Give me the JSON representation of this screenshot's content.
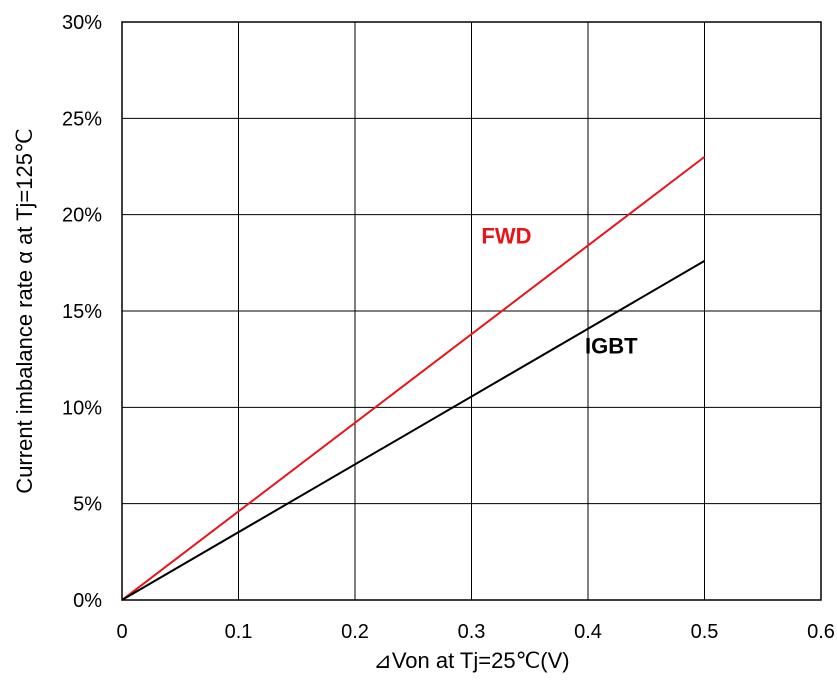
{
  "chart_data": {
    "type": "line",
    "title": "",
    "xlabel": "⊿Von at Tj=25℃(V)",
    "ylabel": "Current imbalance rate α at Tj=125℃",
    "xlim": [
      0,
      0.6
    ],
    "ylim": [
      0,
      30
    ],
    "x_ticks": [
      "0",
      "0.1",
      "0.2",
      "0.3",
      "0.4",
      "0.5",
      "0.6"
    ],
    "y_ticks": [
      "0%",
      "5%",
      "10%",
      "15%",
      "20%",
      "25%",
      "30%"
    ],
    "grid": true,
    "series": [
      {
        "name": "FWD",
        "color": "#e8141b",
        "x": [
          0,
          0.5
        ],
        "y": [
          0,
          23.0
        ]
      },
      {
        "name": "IGBT",
        "color": "#000000",
        "x": [
          0,
          0.5
        ],
        "y": [
          0,
          17.6
        ]
      }
    ]
  }
}
